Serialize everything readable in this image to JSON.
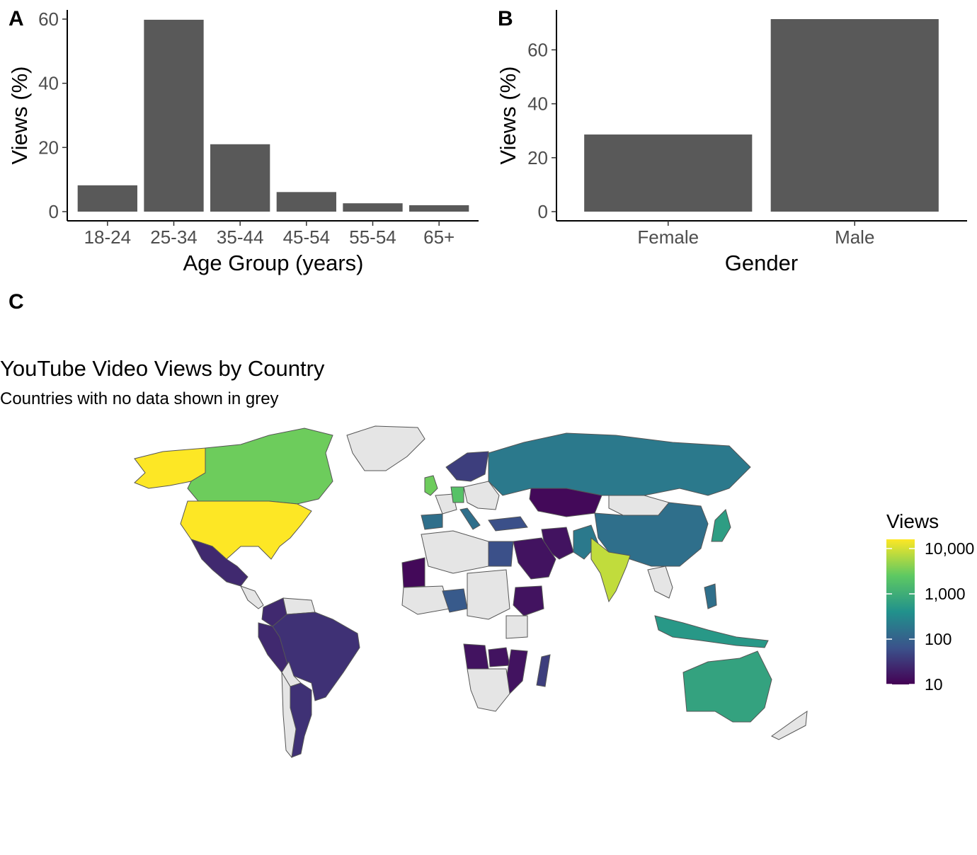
{
  "panels": {
    "a": "A",
    "b": "B",
    "c": "C"
  },
  "chart_data": [
    {
      "panel": "A",
      "type": "bar",
      "categories": [
        "18-24",
        "25-34",
        "35-44",
        "45-54",
        "55-54",
        "65+"
      ],
      "values": [
        8.2,
        59.8,
        21.0,
        6.1,
        2.6,
        2.0
      ],
      "xlabel": "Age Group (years)",
      "ylabel": "Views (%)",
      "ylim": [
        0,
        60
      ],
      "yticks": [
        0,
        20,
        40,
        60
      ],
      "bar_color": "#595959",
      "grid": false
    },
    {
      "panel": "B",
      "type": "bar",
      "categories": [
        "Female",
        "Male"
      ],
      "values": [
        28.6,
        71.4
      ],
      "xlabel": "Gender",
      "ylabel": "Views (%)",
      "ylim": [
        0,
        71.4
      ],
      "yticks": [
        0,
        20,
        40,
        60
      ],
      "bar_color": "#595959",
      "grid": false
    },
    {
      "panel": "C",
      "type": "map",
      "title": "YouTube Video Views by Country",
      "subtitle": "Countries with no data shown in grey",
      "legend": {
        "title": "Views",
        "scale": "log",
        "ticks": [
          10,
          100,
          1000,
          10000
        ],
        "tick_labels": [
          "10",
          "100",
          "1,000",
          "10,000"
        ],
        "range": [
          10,
          16000
        ],
        "colors": [
          "#440154",
          "#3b528b",
          "#21918c",
          "#5ec962",
          "#fde725"
        ],
        "position": "right"
      },
      "no_data_color": "#e5e5e5",
      "regions": [
        {
          "name": "United States",
          "views": 16000
        },
        {
          "name": "Alaska",
          "views": 16000
        },
        {
          "name": "Canada",
          "views": 3000
        },
        {
          "name": "Mexico",
          "views": 25
        },
        {
          "name": "Brazil",
          "views": 30
        },
        {
          "name": "Peru",
          "views": 25
        },
        {
          "name": "Colombia",
          "views": 25
        },
        {
          "name": "Argentina",
          "views": 30
        },
        {
          "name": "Russia",
          "views": 200
        },
        {
          "name": "China",
          "views": 150
        },
        {
          "name": "India",
          "views": 8000
        },
        {
          "name": "Australia",
          "views": 700
        },
        {
          "name": "United Kingdom",
          "views": 3000
        },
        {
          "name": "Germany",
          "views": 2000
        },
        {
          "name": "Spain",
          "views": 150
        },
        {
          "name": "Italy",
          "views": 150
        },
        {
          "name": "Scandinavia",
          "views": 40
        },
        {
          "name": "Turkey",
          "views": 60
        },
        {
          "name": "Saudi Arabia",
          "views": 15
        },
        {
          "name": "Iran",
          "views": 15
        },
        {
          "name": "Kazakhstan",
          "views": 12
        },
        {
          "name": "Pakistan",
          "views": 200
        },
        {
          "name": "Japan",
          "views": 600
        },
        {
          "name": "Indonesia",
          "views": 500
        },
        {
          "name": "Philippines",
          "views": 150
        },
        {
          "name": "Egypt",
          "views": 60
        },
        {
          "name": "Nigeria",
          "views": 80
        },
        {
          "name": "Ethiopia",
          "views": 15
        },
        {
          "name": "Angola",
          "views": 15
        },
        {
          "name": "Zambia",
          "views": 15
        },
        {
          "name": "Mozambique",
          "views": 15
        },
        {
          "name": "Madagascar",
          "views": 40
        },
        {
          "name": "Mali",
          "views": 12
        }
      ]
    }
  ]
}
